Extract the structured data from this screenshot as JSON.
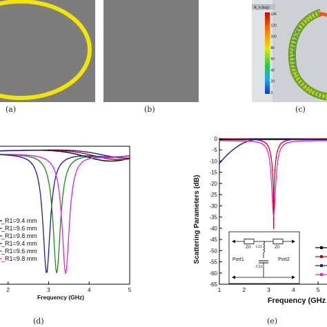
{
  "panels": {
    "a": "(a)",
    "b": "(b)",
    "c": "(c)",
    "d": "(d)",
    "e": "(e)"
  },
  "colorbar": {
    "title": "A_n (log)",
    "ticks": [
      "136",
      "120",
      "100",
      "80",
      "60",
      "40",
      "20",
      "0"
    ]
  },
  "chart_d": {
    "type": "line",
    "xlabel": "Frequency (GHz)",
    "xticks": [
      "2",
      "3",
      "4",
      "5"
    ],
    "xlim": [
      1.8,
      5.0
    ],
    "ylim": [
      -30,
      0
    ],
    "legend": [
      "_R1=9.4 mm",
      "_R1=9.6 mm",
      "_R1=9.8 mm",
      "_R1=9.4 mm",
      "_R1=9.6 mm",
      "_R1=9.8 mm"
    ],
    "colors": [
      "#000000",
      "#cc0000",
      "#1a1aaa",
      "#1a1aaa",
      "#1a8a1a",
      "#dd22dd"
    ]
  },
  "chart_e": {
    "type": "line",
    "ylabel": "Scattering Parameters (dB)",
    "xlabel": "Frequency (GHz",
    "xticks": [
      "1",
      "2",
      "3",
      "4",
      "5"
    ],
    "yticks": [
      "0",
      "-5",
      "-10",
      "-15",
      "-20",
      "-25",
      "-30",
      "-35",
      "-40",
      "-45",
      "-50",
      "-55",
      "-60",
      "-65"
    ],
    "xlim": [
      1,
      5.5
    ],
    "ylim": [
      -65,
      0
    ],
    "colors": [
      "#000000",
      "#cc0000",
      "#1a1aaa",
      "#dd22dd"
    ]
  },
  "circuit": {
    "z0_left": "Z0",
    "l": "L11",
    "z0_right": "Z0",
    "c": "C11",
    "port1": "Port1",
    "port2": "Port2"
  }
}
